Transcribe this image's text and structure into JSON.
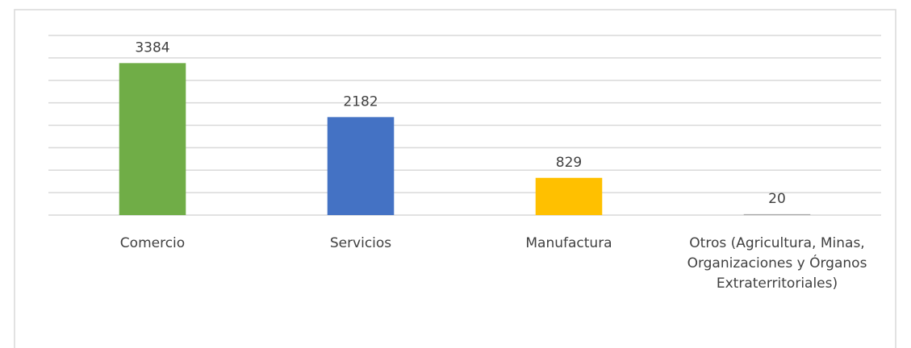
{
  "chart_data": {
    "type": "bar",
    "categories": [
      "Comercio",
      "Servicios",
      "Manufactura",
      "Otros (Agricultura, Minas, Organizaciones y Órganos Extraterritoriales)"
    ],
    "values": [
      3384,
      2182,
      829,
      20
    ],
    "colors": [
      "#70ad47",
      "#4472c4",
      "#ffc000",
      "#a5a5a5"
    ],
    "ylim": [
      0,
      4000
    ],
    "yticks": [
      0,
      500,
      1000,
      1500,
      2000,
      2500,
      3000,
      3500,
      4000
    ],
    "grid": true
  }
}
